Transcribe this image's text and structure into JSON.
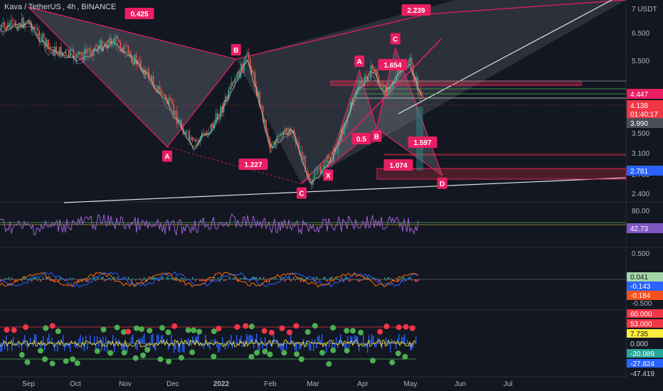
{
  "header": {
    "symbol": "Kava / TetherUS",
    "interval": "4h",
    "exchange": "BINANCE"
  },
  "colors": {
    "background": "#131722",
    "pattern": "#e91e63",
    "grid": "#2a2e39",
    "axis_text": "#b2b5be",
    "candle_up": "#26a69a",
    "candle_down": "#ef5350",
    "rsi": "#9c5fd1",
    "white": "#e0e3eb"
  },
  "chart_data": [
    {
      "type": "line",
      "name": "price-pane",
      "x_ticks": [
        "Sep",
        "Oct",
        "Nov",
        "Dec",
        "2022",
        "Feb",
        "Mar",
        "Apr",
        "May",
        "Jun",
        "Jul"
      ],
      "y_ticks": [
        "7 USDT",
        "6.500",
        "5.500",
        "4.500",
        "3.500",
        "3.100",
        "2.700",
        "2.400"
      ],
      "price_labels": [
        {
          "text": "4.447",
          "bg": "#e91e63",
          "color": "#ffffff"
        },
        {
          "text": "4.138",
          "sub": "01:40:17",
          "bg": "#f23645",
          "color": "#ffffff"
        },
        {
          "text": "3.990",
          "bg": "#4a4e59",
          "color": "#ffffff"
        },
        {
          "text": "2.781",
          "bg": "#2962ff",
          "color": "#ffffff"
        }
      ],
      "pattern_points": [
        {
          "label": "A",
          "date": "2021-12-05",
          "price": 3.22
        },
        {
          "label": "B",
          "date": "2022-01-18",
          "price": 5.55
        },
        {
          "label": "C",
          "date": "2022-03-01",
          "price": 2.55
        },
        {
          "label": "X",
          "date": "2022-03-18",
          "price": 2.83
        },
        {
          "label": "A",
          "date": "2022-04-07",
          "price": 5.2
        },
        {
          "label": "B",
          "date": "2022-04-18",
          "price": 3.62
        },
        {
          "label": "C",
          "date": "2022-04-30",
          "price": 5.95
        },
        {
          "label": "D",
          "date": "2022-05-30",
          "price": 2.68
        }
      ],
      "ratios": [
        "0.425",
        "2.239",
        "1.227",
        "1.654",
        "0.5",
        "1.597",
        "1.074"
      ]
    },
    {
      "type": "line",
      "name": "rsi-pane",
      "y_ticks": [
        "80.00"
      ],
      "last": "42.73"
    },
    {
      "type": "line",
      "name": "macd-pane",
      "y_ticks": [
        "0.500",
        "-0.500"
      ],
      "last": [
        "0.041",
        "-0.143",
        "-0.184"
      ]
    },
    {
      "type": "scatter",
      "name": "oscillator-pane",
      "y_ticks": [
        "60.000",
        "53.000",
        "7.735",
        "0.000",
        "-20.089",
        "-27.824",
        "-47.419"
      ]
    }
  ]
}
